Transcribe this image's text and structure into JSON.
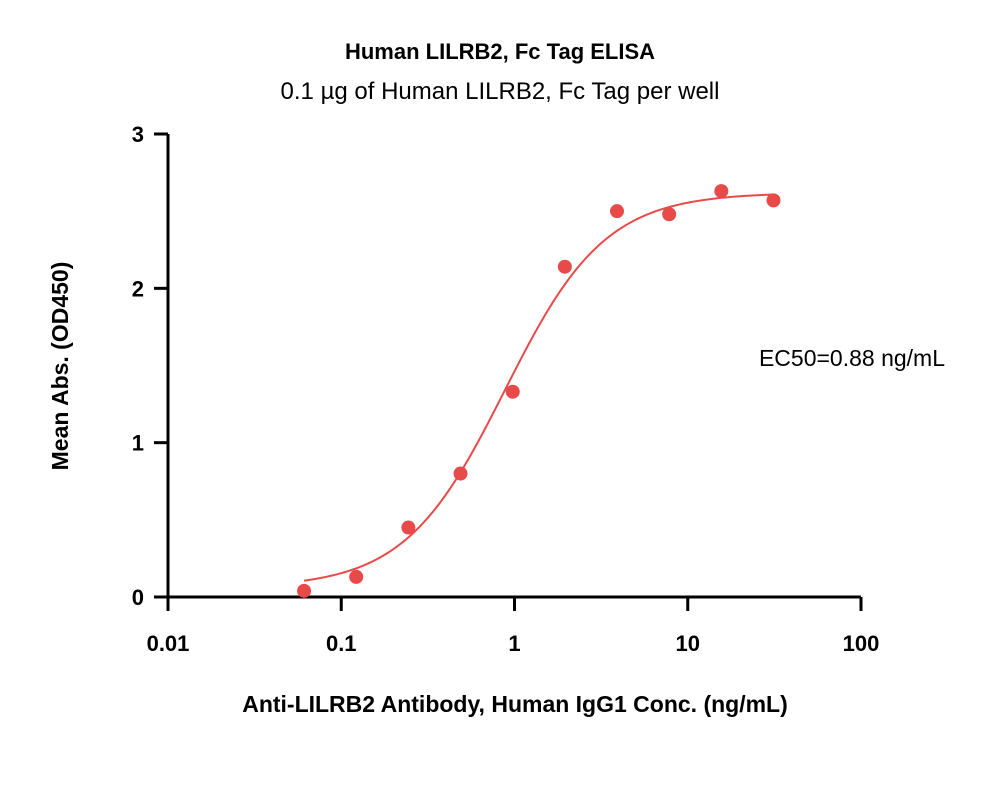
{
  "chart_data": {
    "type": "scatter",
    "title": "Human LILRB2, Fc Tag ELISA",
    "subtitle": "0.1 µg of Human LILRB2, Fc Tag per well",
    "xlabel": "Anti-LILRB2 Antibody, Human IgG1 Conc. (ng/mL)",
    "ylabel": "Mean Abs. (OD450)",
    "xscale": "log",
    "xlim": [
      0.01,
      100
    ],
    "ylim": [
      0,
      3
    ],
    "x_ticks": [
      0.01,
      0.1,
      1,
      10,
      100
    ],
    "x_tick_labels": [
      "0.01",
      "0.1",
      "1",
      "10",
      "100"
    ],
    "y_ticks": [
      0,
      1,
      2,
      3
    ],
    "y_tick_labels": [
      "0",
      "1",
      "2",
      "3"
    ],
    "grid": false,
    "annotation": "EC50=0.88 ng/mL",
    "series": [
      {
        "color": "#e84a4a",
        "x": [
          0.061,
          0.122,
          0.244,
          0.488,
          0.977,
          1.953,
          3.906,
          7.813,
          15.625,
          31.25
        ],
        "y": [
          0.04,
          0.13,
          0.45,
          0.8,
          1.33,
          2.14,
          2.5,
          2.48,
          2.63,
          2.57
        ]
      }
    ],
    "fit": {
      "model": "4PL",
      "bottom": 0.06,
      "top": 2.62,
      "ec50": 0.88,
      "hill": 1.5,
      "color": "#e84a4a"
    }
  }
}
